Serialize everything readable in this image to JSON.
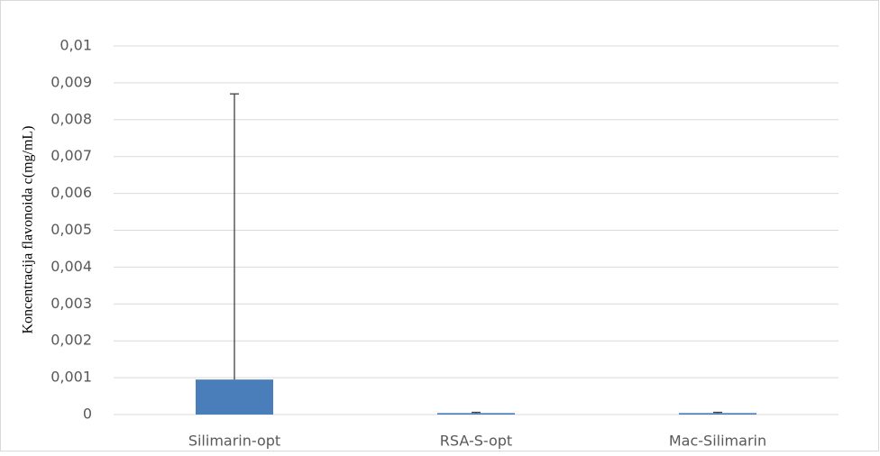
{
  "chart_data": {
    "type": "bar",
    "y_label": "Koncentracija flavonoida c(mg/mL)",
    "categories": [
      "Silimarin-opt",
      "RSA-S-opt",
      "Mac-Silimarin"
    ],
    "values": [
      0.00095,
      4e-05,
      4e-05
    ],
    "errors": [
      0.00775,
      2e-05,
      2e-05
    ],
    "color": "#4a7ebb",
    "error_color": "#404040",
    "ylim": [
      0,
      0.01
    ],
    "yticks": [
      0,
      {
        "value": 0.001,
        "label": "0,001"
      },
      {
        "value": 0.002,
        "label": "0,002"
      },
      {
        "value": 0.003,
        "label": "0,003"
      },
      {
        "value": 0.004,
        "label": "0,004"
      },
      {
        "value": 0.005,
        "label": "0,005"
      },
      {
        "value": 0.006,
        "label": "0,006"
      },
      {
        "value": 0.007,
        "label": "0,007"
      },
      {
        "value": 0.008,
        "label": "0,008"
      },
      {
        "value": 0.009,
        "label": "0,009"
      },
      {
        "value": 0.01,
        "label": "0,01"
      }
    ],
    "grid": true
  }
}
